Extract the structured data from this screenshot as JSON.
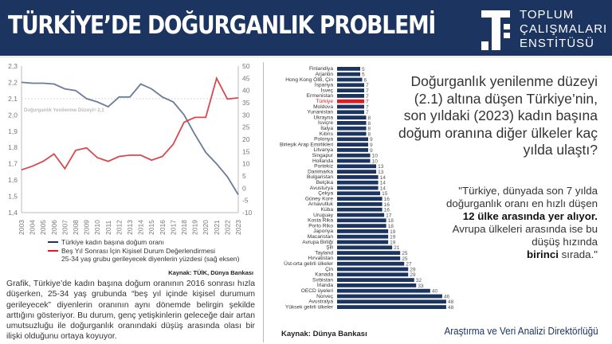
{
  "header": {
    "title": "TÜRKİYE’DE DOĞURGANLIK PROBLEMİ",
    "logo_lines": [
      "TOPLUM",
      "ÇALIŞMALARI",
      "ENSTİTÜSÜ"
    ]
  },
  "colors": {
    "navy": "#1b3460",
    "blue_line": "#6b7b9a",
    "red_line": "#d9474f",
    "highlight": "#e11b22"
  },
  "chart_data": [
    {
      "type": "line",
      "x": [
        2003,
        2004,
        2005,
        2006,
        2007,
        2008,
        2009,
        2010,
        2011,
        2012,
        2013,
        2014,
        2015,
        2016,
        2017,
        2018,
        2019,
        2020,
        2021,
        2022,
        2023
      ],
      "ylim": [
        1.4,
        2.3
      ],
      "y_ticks": [
        "1,4",
        "1,5",
        "1,6",
        "1,7",
        "1,8",
        "1,9",
        "2,0",
        "2,1",
        "2,2",
        "2,3"
      ],
      "y2lim": [
        -10,
        50
      ],
      "y2_ticks": [
        "-10",
        "-5",
        "0",
        "5",
        "10",
        "15",
        "20",
        "25",
        "30",
        "35",
        "40",
        "45",
        "50"
      ],
      "reference_line": {
        "value": 2.1,
        "label": "Doğurganlık Yenilenme Düzeyi= 2,1"
      },
      "series": [
        {
          "name": "Türkiye kadın başına doğum oranı",
          "axis": "left",
          "color": "#6b7b9a",
          "values": [
            2.2,
            2.195,
            2.195,
            2.19,
            2.16,
            2.15,
            2.1,
            2.08,
            2.05,
            2.11,
            2.11,
            2.19,
            2.16,
            2.11,
            2.08,
            2.0,
            1.88,
            1.77,
            1.7,
            1.62,
            1.51
          ]
        },
        {
          "name": "Beş Yıl Sonrası İçin Kişisel Durum Değerlendirmesi",
          "name_line2": "25-34 yaş grubu gerileyecek diyenlerin yüzdesi (sağ eksen)",
          "axis": "right",
          "color": "#d9474f",
          "values": [
            7.5,
            9,
            11,
            14,
            8,
            15.5,
            16.5,
            12.5,
            11,
            13,
            13.5,
            13.5,
            11.5,
            13,
            18,
            27,
            29,
            29,
            45,
            36.5,
            37
          ]
        }
      ],
      "source": "Kaynak: TÜİK, Dünya Bankası"
    },
    {
      "type": "bar",
      "orientation": "horizontal",
      "categories": [
        "Finlandiya",
        "Arjantin",
        "Hong Kong ÖİB, Çin",
        "İspanya",
        "İsveç",
        "Ermenistan",
        "Türkiye",
        "Moldova",
        "Yunanistan",
        "Ukrayna",
        "İsviçre",
        "İtalya",
        "Kıbrıs",
        "Polonya",
        "Birleşik Arap Emirlikleri",
        "Litvanya",
        "Singapur",
        "Hollanda",
        "Portekiz",
        "Danimarka",
        "Bulgaristan",
        "Belçika",
        "Avusturya",
        "Çekya",
        "Güney Kore",
        "Arnavutluk",
        "Küba",
        "Uruguay",
        "Kosta Rika",
        "Porto Riko",
        "Japonya",
        "Macaristan",
        "Avrupa Birliği",
        "Şili",
        "Tayland",
        "Hırvatistan",
        "Üst-orta gelirli ülkeler",
        "Çin",
        "Kanada",
        "Sırbistan",
        "İrlanda",
        "OECD üyeleri",
        "Norveç",
        "Avustralya",
        "Yüksek gelirli ülkeler"
      ],
      "values": [
        5,
        5,
        6,
        7,
        7,
        7,
        7,
        7,
        7,
        8,
        8,
        8,
        8,
        9,
        9,
        9,
        10,
        10,
        13,
        13,
        14,
        14,
        14,
        15,
        16,
        16,
        16,
        17,
        18,
        18,
        19,
        19,
        19,
        21,
        25,
        25,
        27,
        29,
        29,
        32,
        33,
        40,
        46,
        48,
        48
      ],
      "highlight": "Türkiye",
      "source": "Kaynak: Dünya Bankası"
    }
  ],
  "paragraph": "Grafik, Türkiye’de kadın başına doğum oranının 2016 sonrası hızla düşerken, 25-34 yaş grubunda “beş yıl içinde kişisel durumum gerileyecek” diyenlerin oranının aynı dönemde belirgin şekilde arttığını gösteriyor. Bu durum, genç yetişkinlerin geleceğe dair artan umutsuzluğu ile doğurganlık oranındaki düşüş arasında olası bir ilişki olduğunu ortaya koyuyor.",
  "question": "Doğurganlık yenilenme düzeyi (2.1) altına düşen Türkiye’nin, son yıldaki (2023) kadın başına doğum oranına diğer ülkeler kaç yılda ulaştı?",
  "quote": {
    "part1": "\"Türkiye, dünyada son 7 yılda doğurganlık oranı en hızlı düşen",
    "bold1": "12 ülke arasında yer alıyor.",
    "part2": "Avrupa ülkeleri arasında ise bu düşüş hızında",
    "bold2": "birinci",
    "part3": "sırada.\""
  },
  "footer": "Araştırma ve Veri Analizi Direktörlüğü"
}
